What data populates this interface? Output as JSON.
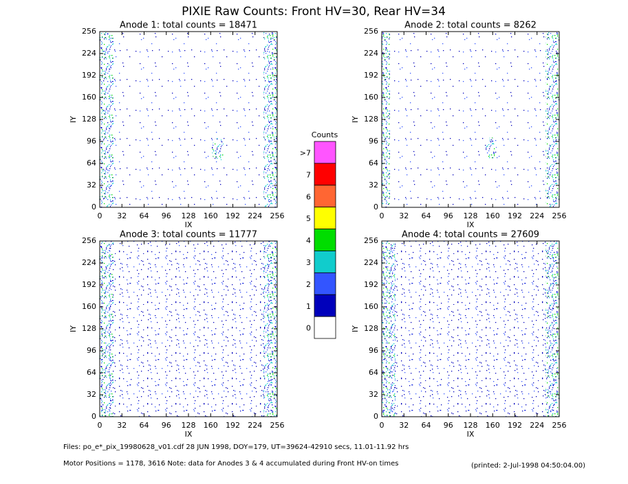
{
  "chart_data": {
    "type": "heatmap",
    "title": "PIXIE Raw Counts:  Front HV=30, Rear HV=34",
    "panels": [
      {
        "title": "Anode 1: total counts = 18471",
        "xlabel": "IX",
        "ylabel": "IY",
        "xlim": [
          0,
          256
        ],
        "ylim": [
          0,
          256
        ],
        "xticks": [
          0,
          32,
          64,
          96,
          128,
          160,
          192,
          224,
          256
        ],
        "yticks": [
          0,
          32,
          64,
          96,
          128,
          160,
          192,
          224,
          256
        ]
      },
      {
        "title": "Anode 2: total counts = 8262",
        "xlabel": "IX",
        "ylabel": "IY",
        "xlim": [
          0,
          256
        ],
        "ylim": [
          0,
          256
        ],
        "xticks": [
          0,
          32,
          64,
          96,
          128,
          160,
          192,
          224,
          256
        ],
        "yticks": [
          0,
          32,
          64,
          96,
          128,
          160,
          192,
          224,
          256
        ]
      },
      {
        "title": "Anode 3: total counts = 11777",
        "xlabel": "IX",
        "ylabel": "IY",
        "xlim": [
          0,
          256
        ],
        "ylim": [
          0,
          256
        ],
        "xticks": [
          0,
          32,
          64,
          96,
          128,
          160,
          192,
          224,
          256
        ],
        "yticks": [
          0,
          32,
          64,
          96,
          128,
          160,
          192,
          224,
          256
        ]
      },
      {
        "title": "Anode 4: total counts = 27609",
        "xlabel": "IX",
        "ylabel": "IY",
        "xlim": [
          0,
          256
        ],
        "ylim": [
          0,
          256
        ],
        "xticks": [
          0,
          32,
          64,
          96,
          128,
          160,
          192,
          224,
          256
        ],
        "yticks": [
          0,
          32,
          64,
          96,
          128,
          160,
          192,
          224,
          256
        ]
      }
    ],
    "colorbar": {
      "title": "Counts",
      "labels": [
        ">7",
        "7",
        "6",
        "5",
        "4",
        "3",
        "2",
        "1",
        "0"
      ],
      "colors": [
        "#ff55ff",
        "#ff0000",
        "#ff6633",
        "#ffff00",
        "#00dd00",
        "#11cccc",
        "#3355ff",
        "#0000bb",
        "#ffffff"
      ]
    },
    "footer": {
      "files": "Files: po_e*_pix_19980628_v01.cdf    28 JUN 1998, DOY=179, UT=39624-42910 secs, 11.01-11.92 hrs",
      "motor": "Motor Positions = 1178, 3616   Note: data for Anodes 3 & 4 accumulated during Front HV-on times",
      "printed": "(printed:  2-Jul-1998 04:50:04.00)"
    }
  }
}
